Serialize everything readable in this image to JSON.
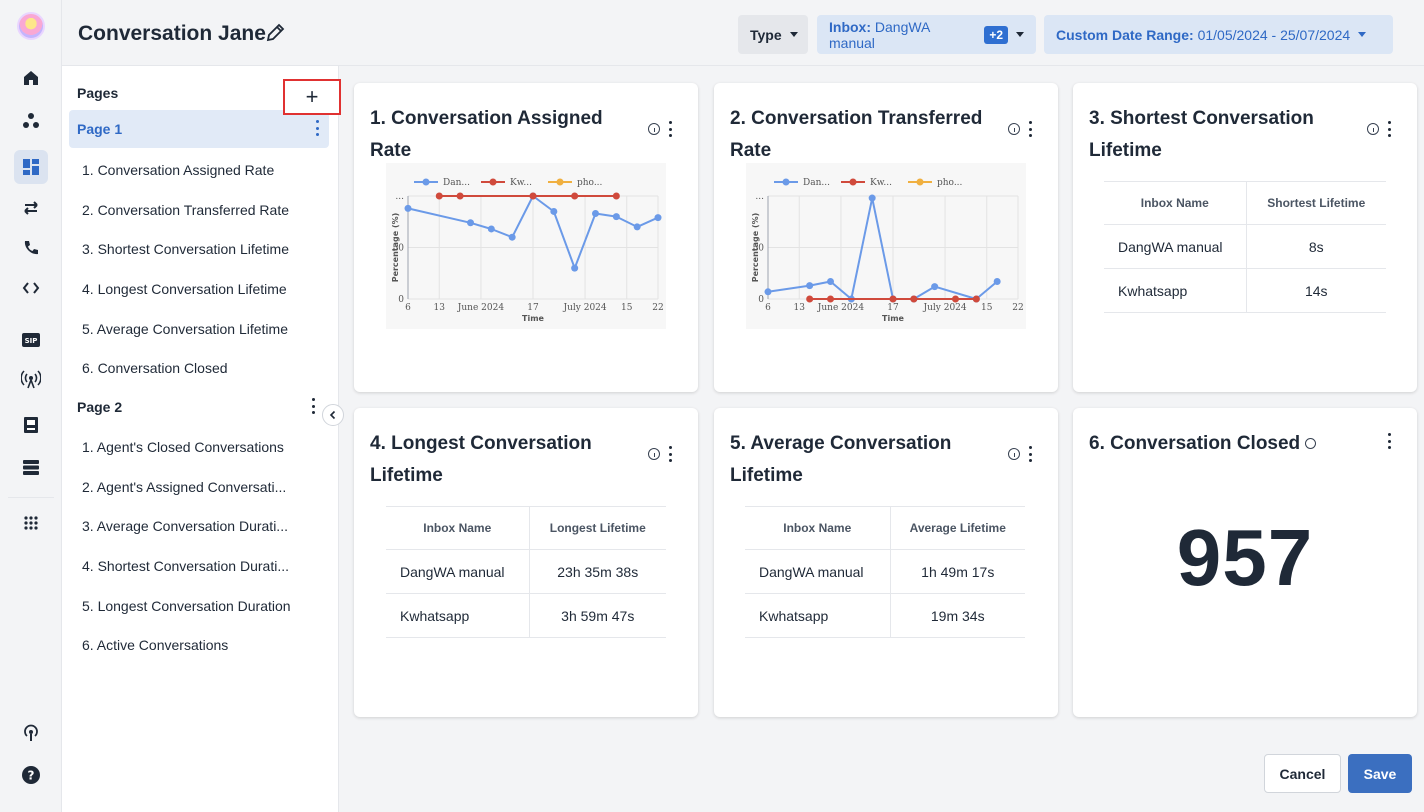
{
  "header": {
    "title": "Conversation Jane",
    "filters": {
      "type_label": "Type",
      "inbox_prefix": "Inbox:",
      "inbox_value": "DangWA manual",
      "inbox_extra": "+2",
      "date_prefix": "Custom Date Range:",
      "date_value": "01/05/2024 - 25/07/2024"
    }
  },
  "pages_panel": {
    "heading": "Pages",
    "add_label": "+",
    "pages": [
      {
        "label": "Page 1",
        "items": [
          "1. Conversation Assigned Rate",
          "2. Conversation Transferred Rate",
          "3. Shortest Conversation Lifetime",
          "4. Longest Conversation Lifetime",
          "5. Average Conversation Lifetime",
          "6. Conversation Closed"
        ]
      },
      {
        "label": "Page 2",
        "items": [
          "1. Agent's Closed Conversations",
          "2. Agent's Assigned Conversati...",
          "3. Average Conversation Durati...",
          "4. Shortest Conversation Durati...",
          "5. Longest Conversation Duration",
          "6. Active Conversations"
        ]
      }
    ]
  },
  "cards": {
    "c1": {
      "title": "1. Conversation Assigned Rate"
    },
    "c2": {
      "title": "2. Conversation Transferred Rate"
    },
    "c3": {
      "title": "3. Shortest Conversation Lifetime",
      "headers": [
        "Inbox Name",
        "Shortest Lifetime"
      ],
      "rows": [
        [
          "DangWA manual",
          "8s"
        ],
        [
          "Kwhatsapp",
          "14s"
        ]
      ]
    },
    "c4": {
      "title": "4. Longest Conversation Lifetime",
      "headers": [
        "Inbox Name",
        "Longest Lifetime"
      ],
      "rows": [
        [
          "DangWA manual",
          "23h 35m 38s"
        ],
        [
          "Kwhatsapp",
          "3h 59m 47s"
        ]
      ]
    },
    "c5": {
      "title": "5. Average Conversation Lifetime",
      "headers": [
        "Inbox Name",
        "Average Lifetime"
      ],
      "rows": [
        [
          "DangWA manual",
          "1h 49m 17s"
        ],
        [
          "Kwhatsapp",
          "19m 34s"
        ]
      ]
    },
    "c6": {
      "title": "6. Conversation Closed",
      "value": "957"
    }
  },
  "chart_data": [
    {
      "type": "line",
      "xlabel": "Time",
      "ylabel": "Percentage (%)",
      "y_tick_labels": [
        "0",
        "50",
        "..."
      ],
      "x_tick_labels": [
        "6",
        "13",
        "June 2024",
        "17",
        "July 2024",
        "15",
        "22"
      ],
      "legend": [
        "Dan...",
        "Kw...",
        "pho..."
      ],
      "legend_placement": "top",
      "ylim": [
        0,
        100
      ],
      "series": [
        {
          "name": "Dan...",
          "color": "#6b9ae8",
          "points": [
            [
              0,
              88
            ],
            [
              3,
              74
            ],
            [
              4,
              68
            ],
            [
              5,
              60
            ],
            [
              6,
              100
            ],
            [
              7,
              85
            ],
            [
              8,
              30
            ],
            [
              9,
              83
            ],
            [
              10,
              80
            ],
            [
              11,
              70
            ],
            [
              12,
              79
            ]
          ]
        },
        {
          "name": "Kw...",
          "color": "#d04a3c",
          "points": [
            [
              1.5,
              100
            ],
            [
              2.5,
              100
            ],
            [
              6,
              100
            ],
            [
              8,
              100
            ],
            [
              10,
              100
            ]
          ]
        },
        {
          "name": "pho...",
          "color": "#f0b040",
          "points": []
        }
      ]
    },
    {
      "type": "line",
      "xlabel": "Time",
      "ylabel": "Percentage (%)",
      "y_tick_labels": [
        "0",
        "50",
        "..."
      ],
      "x_tick_labels": [
        "6",
        "13",
        "June 2024",
        "17",
        "July 2024",
        "15",
        "22"
      ],
      "legend": [
        "Dan...",
        "Kw...",
        "pho..."
      ],
      "legend_placement": "top",
      "ylim": [
        0,
        100
      ],
      "series": [
        {
          "name": "Dan...",
          "color": "#6b9ae8",
          "points": [
            [
              0,
              7
            ],
            [
              2,
              13
            ],
            [
              3,
              17
            ],
            [
              4,
              0
            ],
            [
              5,
              98
            ],
            [
              6,
              0
            ],
            [
              7,
              0
            ],
            [
              8,
              12
            ],
            [
              10,
              0
            ],
            [
              11,
              17
            ]
          ]
        },
        {
          "name": "Kw...",
          "color": "#d04a3c",
          "points": [
            [
              2,
              0
            ],
            [
              3,
              0
            ],
            [
              6,
              0
            ],
            [
              7,
              0
            ],
            [
              9,
              0
            ],
            [
              10,
              0
            ]
          ]
        },
        {
          "name": "pho...",
          "color": "#f0b040",
          "points": []
        }
      ]
    }
  ],
  "footer": {
    "cancel_label": "Cancel",
    "save_label": "Save"
  }
}
